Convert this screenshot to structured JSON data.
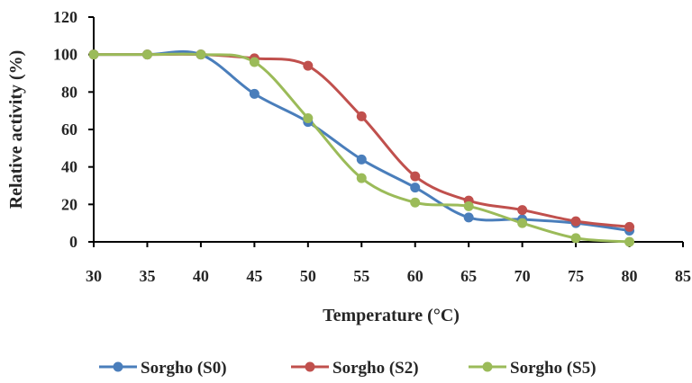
{
  "chart_data": {
    "type": "line",
    "title": "",
    "xlabel": "Temperature (°C)",
    "ylabel": "Relative activity (%)",
    "xlim": [
      30,
      85
    ],
    "ylim": [
      0,
      120
    ],
    "xticks": [
      30,
      35,
      40,
      45,
      50,
      55,
      60,
      65,
      70,
      75,
      80,
      85
    ],
    "yticks": [
      0,
      20,
      40,
      60,
      80,
      100,
      120
    ],
    "grid": false,
    "smooth": true,
    "legend_position": "bottom",
    "series": [
      {
        "name": "Sorgho (S0)",
        "color": "#4a7ebb",
        "x": [
          30,
          35,
          40,
          45,
          50,
          55,
          60,
          65,
          70,
          75,
          80
        ],
        "y": [
          100,
          100,
          100,
          79,
          64,
          44,
          29,
          13,
          12,
          10,
          6
        ]
      },
      {
        "name": "Sorgho (S2)",
        "color": "#c0504d",
        "x": [
          30,
          35,
          40,
          45,
          50,
          55,
          60,
          65,
          70,
          75,
          80
        ],
        "y": [
          100,
          100,
          100,
          98,
          94,
          67,
          35,
          22,
          17,
          11,
          8
        ]
      },
      {
        "name": "Sorgho (S5)",
        "color": "#9bbb59",
        "x": [
          30,
          35,
          40,
          45,
          50,
          55,
          60,
          65,
          70,
          75,
          80
        ],
        "y": [
          100,
          100,
          100,
          96,
          66,
          34,
          21,
          19,
          10,
          2,
          0
        ]
      }
    ]
  }
}
